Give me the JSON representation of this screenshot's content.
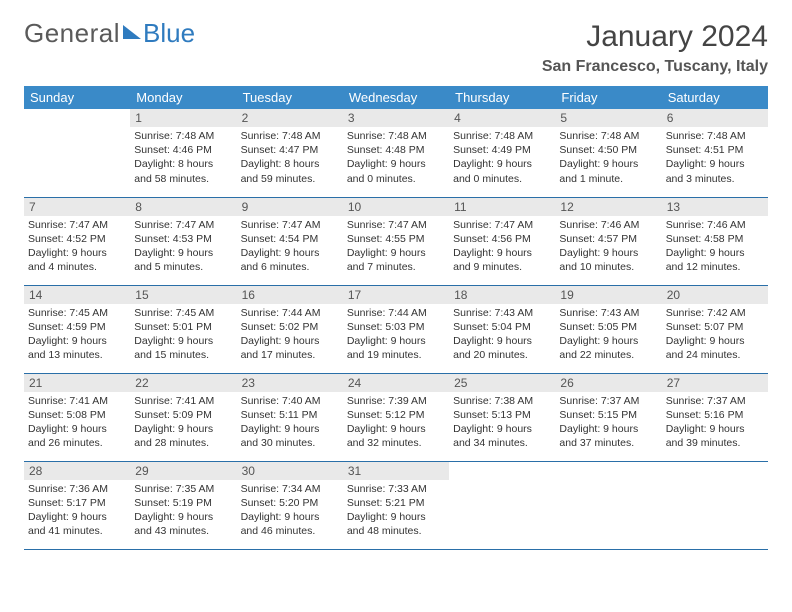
{
  "logo": {
    "text1": "General",
    "text2": "Blue"
  },
  "title": "January 2024",
  "location": "San Francesco, Tuscany, Italy",
  "colors": {
    "header_bg": "#3a8ac8",
    "header_fg": "#ffffff",
    "daynum_bg": "#e9e9e9",
    "rule": "#2a6fa8",
    "brand_blue": "#2f7bbf"
  },
  "daysOfWeek": [
    "Sunday",
    "Monday",
    "Tuesday",
    "Wednesday",
    "Thursday",
    "Friday",
    "Saturday"
  ],
  "firstDayOffset": 1,
  "daysInMonth": 31,
  "days": [
    {
      "n": 1,
      "sunrise": "7:48 AM",
      "sunset": "4:46 PM",
      "daylight": "8 hours and 58 minutes."
    },
    {
      "n": 2,
      "sunrise": "7:48 AM",
      "sunset": "4:47 PM",
      "daylight": "8 hours and 59 minutes."
    },
    {
      "n": 3,
      "sunrise": "7:48 AM",
      "sunset": "4:48 PM",
      "daylight": "9 hours and 0 minutes."
    },
    {
      "n": 4,
      "sunrise": "7:48 AM",
      "sunset": "4:49 PM",
      "daylight": "9 hours and 0 minutes."
    },
    {
      "n": 5,
      "sunrise": "7:48 AM",
      "sunset": "4:50 PM",
      "daylight": "9 hours and 1 minute."
    },
    {
      "n": 6,
      "sunrise": "7:48 AM",
      "sunset": "4:51 PM",
      "daylight": "9 hours and 3 minutes."
    },
    {
      "n": 7,
      "sunrise": "7:47 AM",
      "sunset": "4:52 PM",
      "daylight": "9 hours and 4 minutes."
    },
    {
      "n": 8,
      "sunrise": "7:47 AM",
      "sunset": "4:53 PM",
      "daylight": "9 hours and 5 minutes."
    },
    {
      "n": 9,
      "sunrise": "7:47 AM",
      "sunset": "4:54 PM",
      "daylight": "9 hours and 6 minutes."
    },
    {
      "n": 10,
      "sunrise": "7:47 AM",
      "sunset": "4:55 PM",
      "daylight": "9 hours and 7 minutes."
    },
    {
      "n": 11,
      "sunrise": "7:47 AM",
      "sunset": "4:56 PM",
      "daylight": "9 hours and 9 minutes."
    },
    {
      "n": 12,
      "sunrise": "7:46 AM",
      "sunset": "4:57 PM",
      "daylight": "9 hours and 10 minutes."
    },
    {
      "n": 13,
      "sunrise": "7:46 AM",
      "sunset": "4:58 PM",
      "daylight": "9 hours and 12 minutes."
    },
    {
      "n": 14,
      "sunrise": "7:45 AM",
      "sunset": "4:59 PM",
      "daylight": "9 hours and 13 minutes."
    },
    {
      "n": 15,
      "sunrise": "7:45 AM",
      "sunset": "5:01 PM",
      "daylight": "9 hours and 15 minutes."
    },
    {
      "n": 16,
      "sunrise": "7:44 AM",
      "sunset": "5:02 PM",
      "daylight": "9 hours and 17 minutes."
    },
    {
      "n": 17,
      "sunrise": "7:44 AM",
      "sunset": "5:03 PM",
      "daylight": "9 hours and 19 minutes."
    },
    {
      "n": 18,
      "sunrise": "7:43 AM",
      "sunset": "5:04 PM",
      "daylight": "9 hours and 20 minutes."
    },
    {
      "n": 19,
      "sunrise": "7:43 AM",
      "sunset": "5:05 PM",
      "daylight": "9 hours and 22 minutes."
    },
    {
      "n": 20,
      "sunrise": "7:42 AM",
      "sunset": "5:07 PM",
      "daylight": "9 hours and 24 minutes."
    },
    {
      "n": 21,
      "sunrise": "7:41 AM",
      "sunset": "5:08 PM",
      "daylight": "9 hours and 26 minutes."
    },
    {
      "n": 22,
      "sunrise": "7:41 AM",
      "sunset": "5:09 PM",
      "daylight": "9 hours and 28 minutes."
    },
    {
      "n": 23,
      "sunrise": "7:40 AM",
      "sunset": "5:11 PM",
      "daylight": "9 hours and 30 minutes."
    },
    {
      "n": 24,
      "sunrise": "7:39 AM",
      "sunset": "5:12 PM",
      "daylight": "9 hours and 32 minutes."
    },
    {
      "n": 25,
      "sunrise": "7:38 AM",
      "sunset": "5:13 PM",
      "daylight": "9 hours and 34 minutes."
    },
    {
      "n": 26,
      "sunrise": "7:37 AM",
      "sunset": "5:15 PM",
      "daylight": "9 hours and 37 minutes."
    },
    {
      "n": 27,
      "sunrise": "7:37 AM",
      "sunset": "5:16 PM",
      "daylight": "9 hours and 39 minutes."
    },
    {
      "n": 28,
      "sunrise": "7:36 AM",
      "sunset": "5:17 PM",
      "daylight": "9 hours and 41 minutes."
    },
    {
      "n": 29,
      "sunrise": "7:35 AM",
      "sunset": "5:19 PM",
      "daylight": "9 hours and 43 minutes."
    },
    {
      "n": 30,
      "sunrise": "7:34 AM",
      "sunset": "5:20 PM",
      "daylight": "9 hours and 46 minutes."
    },
    {
      "n": 31,
      "sunrise": "7:33 AM",
      "sunset": "5:21 PM",
      "daylight": "9 hours and 48 minutes."
    }
  ],
  "labels": {
    "sunrise": "Sunrise:",
    "sunset": "Sunset:",
    "daylight": "Daylight:"
  }
}
